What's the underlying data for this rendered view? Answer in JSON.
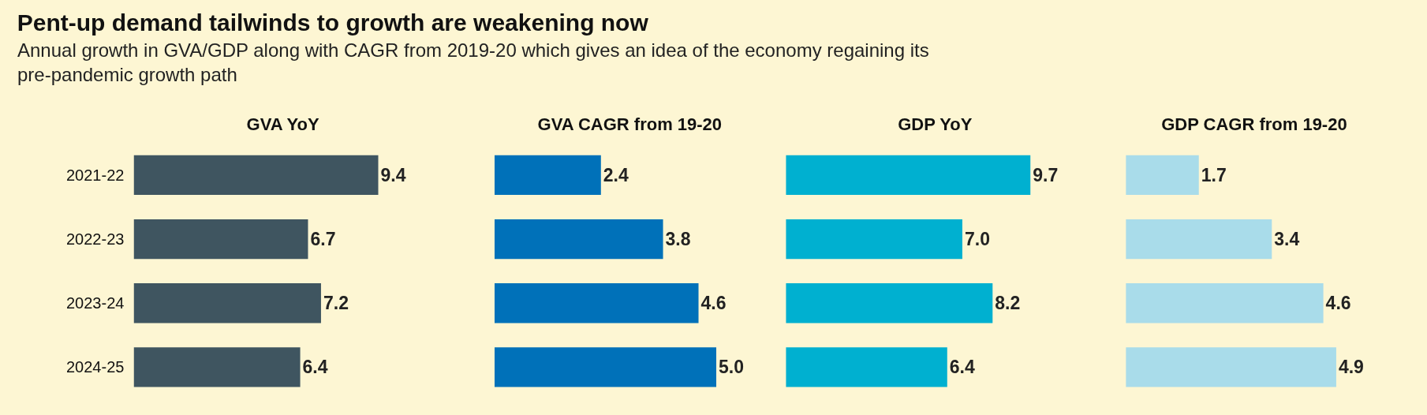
{
  "chart_data": [
    {
      "type": "bar",
      "orientation": "horizontal",
      "title": "Pent-up demand tailwinds to growth are weakening now",
      "subtitle": "Annual growth in GVA/GDP along with CAGR from 2019-20 which gives an idea of the economy regaining its pre-pandemic growth path",
      "xlabel": "GVA YoY",
      "categories": [
        "2021-22",
        "2022-23",
        "2023-24",
        "2024-25"
      ],
      "values": [
        9.4,
        6.7,
        7.2,
        6.4
      ],
      "value_labels": [
        "9.4",
        "6.7",
        "7.2",
        "6.4"
      ],
      "color": "#3f5560",
      "tick_labels": "y"
    },
    {
      "type": "bar",
      "orientation": "horizontal",
      "xlabel": "GVA CAGR from 19-20",
      "categories": [
        "2021-22",
        "2022-23",
        "2023-24",
        "2024-25"
      ],
      "values": [
        2.4,
        3.8,
        4.6,
        5.0
      ],
      "value_labels": [
        "2.4",
        "3.8",
        "4.6",
        "5.0"
      ],
      "color": "#0071b9",
      "tick_labels": false
    },
    {
      "type": "bar",
      "orientation": "horizontal",
      "xlabel": "GDP YoY",
      "categories": [
        "2021-22",
        "2022-23",
        "2023-24",
        "2024-25"
      ],
      "values": [
        9.7,
        7.0,
        8.2,
        6.4
      ],
      "value_labels": [
        "9.7",
        "7.0",
        "8.2",
        "6.4"
      ],
      "color": "#00b0d0",
      "tick_labels": false
    },
    {
      "type": "bar",
      "orientation": "horizontal",
      "xlabel": "GDP CAGR from 19-20",
      "categories": [
        "2021-22",
        "2022-23",
        "2023-24",
        "2024-25"
      ],
      "values": [
        1.7,
        3.4,
        4.6,
        4.9
      ],
      "value_labels": [
        "1.7",
        "3.4",
        "4.6",
        "4.9"
      ],
      "color": "#a9dcea",
      "tick_labels": false
    }
  ]
}
